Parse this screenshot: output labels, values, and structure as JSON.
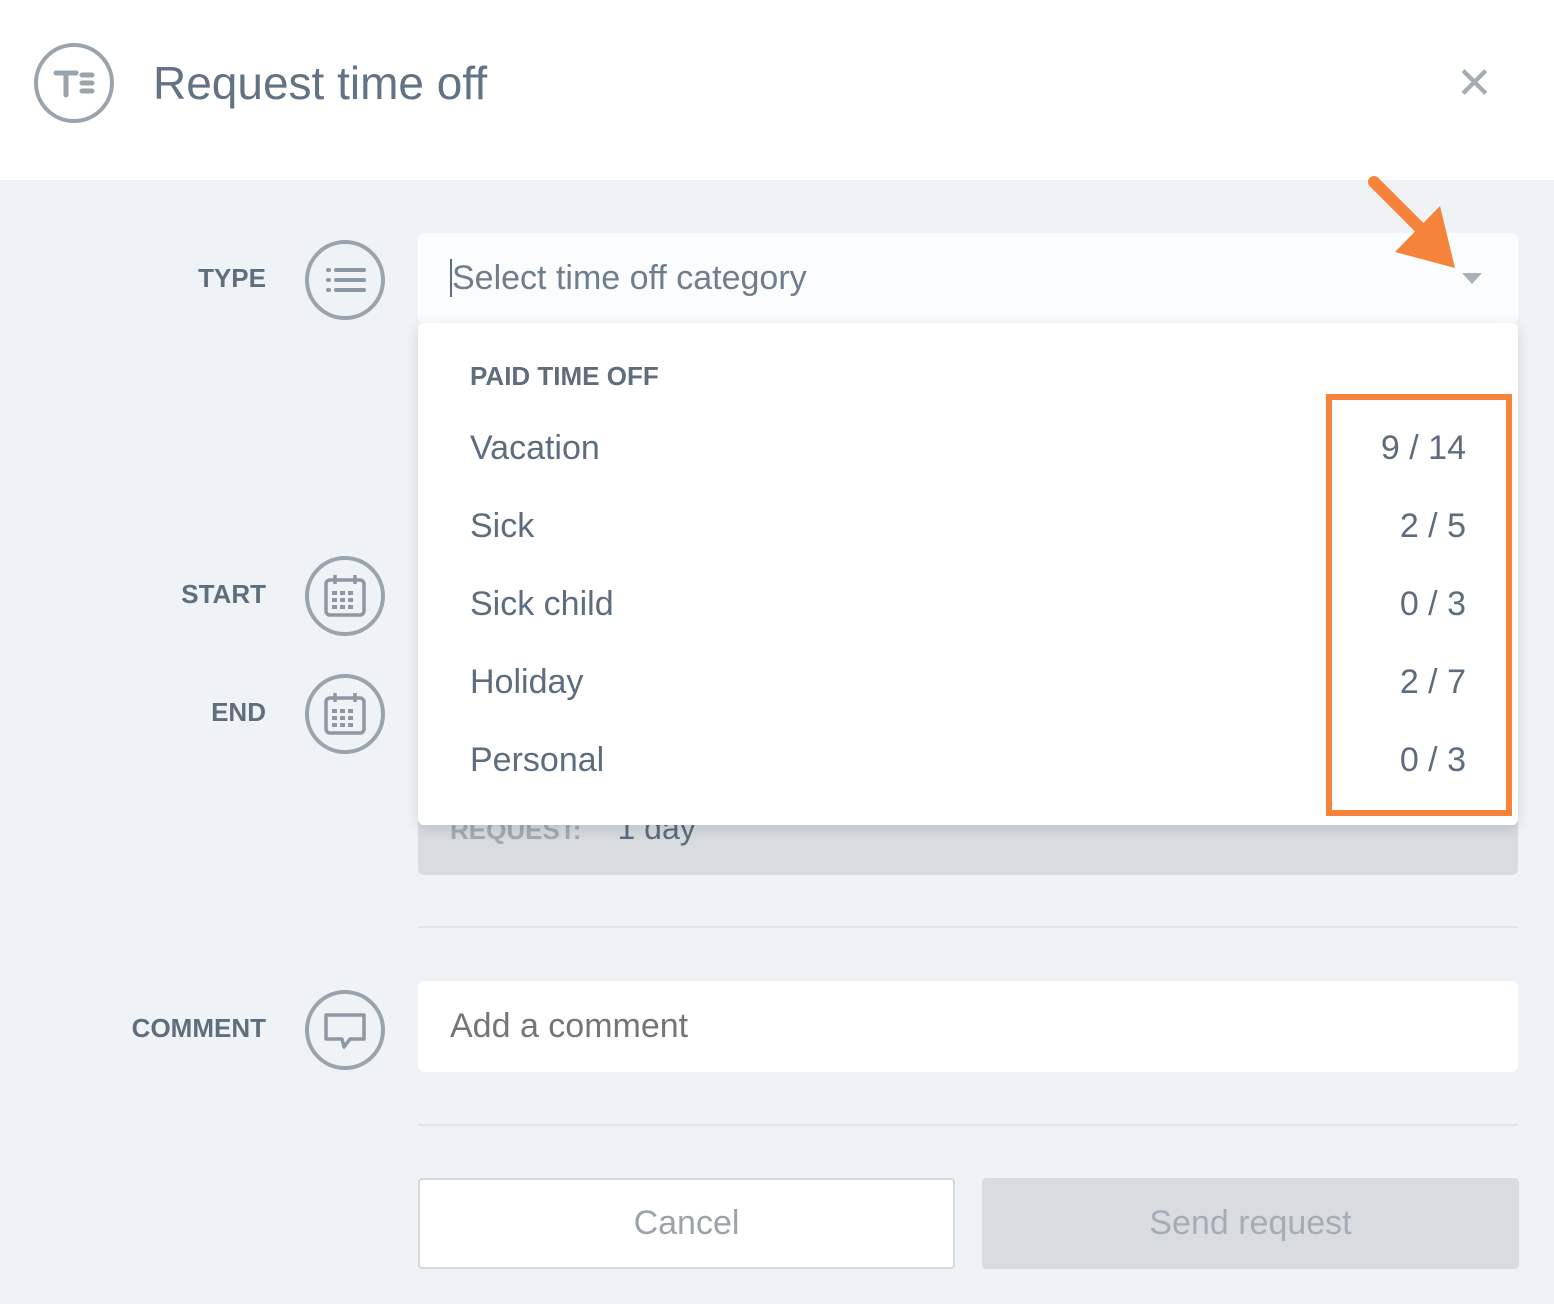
{
  "header": {
    "title": "Request time off",
    "logo_text": "TE",
    "close_icon": "close-icon"
  },
  "form": {
    "type_label": "TYPE",
    "start_label": "START",
    "end_label": "END",
    "comment_label": "COMMENT",
    "type_placeholder": "Select time off category",
    "dropdown": {
      "group": "PAID TIME OFF",
      "options": [
        {
          "label": "Vacation",
          "balance": "9 / 14"
        },
        {
          "label": "Sick",
          "balance": "2 / 5"
        },
        {
          "label": "Sick child",
          "balance": "0 / 3"
        },
        {
          "label": "Holiday",
          "balance": "2 / 7"
        },
        {
          "label": "Personal",
          "balance": "0 / 3"
        }
      ]
    },
    "request_label": "REQUEST:",
    "request_value": "1 day",
    "comment_placeholder": "Add a comment"
  },
  "buttons": {
    "cancel": "Cancel",
    "send": "Send request"
  },
  "annotation": {
    "color": "#f5833a"
  }
}
